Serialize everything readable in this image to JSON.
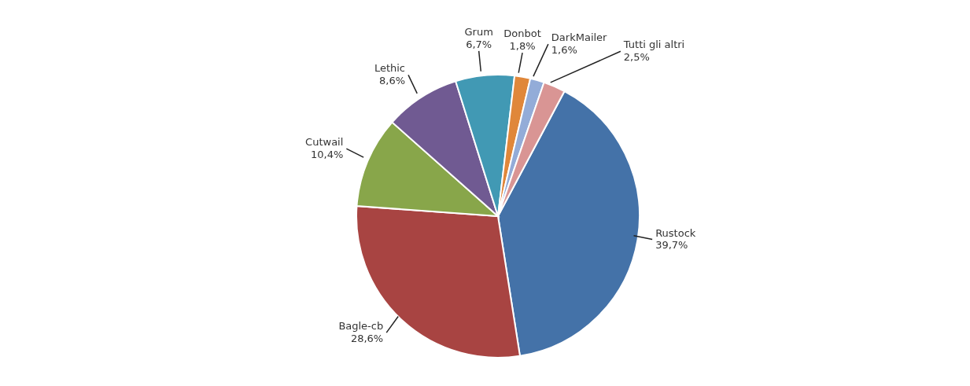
{
  "chart_data": {
    "type": "pie",
    "categories": [
      "Rustock",
      "Bagle-cb",
      "Cutwail",
      "Lethic",
      "Grum",
      "Donbot",
      "DarkMailer",
      "Tutti gli altri"
    ],
    "values": [
      39.7,
      28.6,
      10.4,
      8.6,
      6.7,
      1.8,
      1.6,
      2.5
    ],
    "colors": [
      "#4472a8",
      "#a84442",
      "#88a64a",
      "#705a92",
      "#4199b4",
      "#e0873a",
      "#93acd8",
      "#d99594"
    ],
    "value_labels": [
      "39,7%",
      "28,6%",
      "10,4%",
      "8,6%",
      "6,7%",
      "1,8%",
      "1,6%",
      "2,5%"
    ],
    "legend": false
  }
}
